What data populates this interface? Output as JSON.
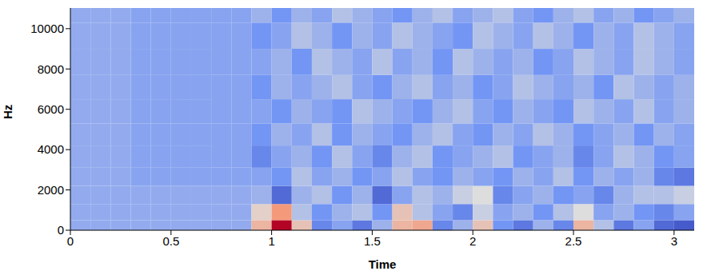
{
  "chart_data": {
    "type": "heatmap",
    "x_label": "Time",
    "y_label": "Hz",
    "xlim": [
      0,
      3.1
    ],
    "ylim": [
      0,
      11025
    ],
    "xticks": [
      0,
      0.5,
      1,
      1.5,
      2,
      2.5,
      3
    ],
    "yticks": [
      0,
      2000,
      4000,
      6000,
      8000,
      10000
    ],
    "x_edges": [
      0,
      0.1,
      0.2,
      0.3,
      0.4,
      0.5,
      0.6,
      0.7,
      0.8,
      0.9,
      1.0,
      1.1,
      1.2,
      1.3,
      1.4,
      1.5,
      1.6,
      1.7,
      1.8,
      1.9,
      2.0,
      2.1,
      2.2,
      2.3,
      2.4,
      2.5,
      2.6,
      2.7,
      2.8,
      2.9,
      3.0,
      3.1
    ],
    "y_edges": [
      0,
      500,
      1300,
      2200,
      3100,
      4200,
      5300,
      6500,
      7700,
      9000,
      10300,
      11025
    ],
    "cells": [
      [
        -0.35,
        -0.35,
        -0.35,
        -0.35,
        -0.35,
        -0.35,
        -0.35,
        -0.35,
        -0.35,
        0.3,
        1.0,
        0.2,
        -0.6,
        -0.4,
        -0.7,
        -0.3,
        0.3,
        0.4,
        -0.6,
        -0.3,
        0.2,
        -0.5,
        -0.7,
        -0.3,
        -0.6,
        0.3,
        -0.2,
        -0.7,
        -0.4,
        -0.8,
        -0.9
      ],
      [
        -0.35,
        -0.35,
        -0.35,
        -0.35,
        -0.35,
        -0.35,
        -0.35,
        -0.35,
        -0.35,
        0.1,
        0.5,
        -0.2,
        -0.5,
        -0.3,
        -0.2,
        -0.5,
        0.2,
        -0.2,
        -0.4,
        -0.6,
        -0.1,
        -0.4,
        -0.3,
        -0.5,
        -0.2,
        0.0,
        -0.4,
        -0.3,
        -0.5,
        -0.6,
        -0.4
      ],
      [
        -0.35,
        -0.35,
        -0.35,
        -0.35,
        -0.35,
        -0.35,
        -0.35,
        -0.35,
        -0.35,
        -0.3,
        -0.8,
        -0.3,
        -0.2,
        -0.5,
        -0.3,
        -0.8,
        -0.4,
        -0.2,
        -0.3,
        -0.1,
        0.0,
        -0.6,
        -0.4,
        -0.3,
        -0.5,
        -0.4,
        -0.6,
        -0.3,
        -0.2,
        -0.2,
        -0.1
      ],
      [
        -0.35,
        -0.35,
        -0.35,
        -0.4,
        -0.4,
        -0.4,
        -0.4,
        -0.4,
        -0.4,
        -0.4,
        -0.5,
        -0.2,
        -0.4,
        -0.3,
        -0.5,
        -0.4,
        -0.2,
        -0.4,
        -0.5,
        -0.3,
        -0.4,
        -0.5,
        -0.3,
        -0.4,
        -0.2,
        -0.5,
        -0.3,
        -0.4,
        -0.3,
        -0.6,
        -0.7
      ],
      [
        -0.35,
        -0.35,
        -0.35,
        -0.4,
        -0.4,
        -0.4,
        -0.4,
        -0.4,
        -0.4,
        -0.6,
        -0.4,
        -0.3,
        -0.5,
        -0.2,
        -0.4,
        -0.6,
        -0.3,
        -0.2,
        -0.5,
        -0.4,
        -0.3,
        -0.2,
        -0.5,
        -0.4,
        -0.3,
        -0.6,
        -0.4,
        -0.2,
        -0.3,
        -0.5,
        -0.4
      ],
      [
        -0.35,
        -0.35,
        -0.35,
        -0.4,
        -0.4,
        -0.4,
        -0.4,
        -0.4,
        -0.4,
        -0.5,
        -0.3,
        -0.4,
        -0.2,
        -0.5,
        -0.3,
        -0.4,
        -0.5,
        -0.3,
        -0.2,
        -0.4,
        -0.5,
        -0.3,
        -0.4,
        -0.2,
        -0.3,
        -0.5,
        -0.4,
        -0.3,
        -0.5,
        -0.3,
        -0.4
      ],
      [
        -0.35,
        -0.35,
        -0.35,
        -0.4,
        -0.4,
        -0.4,
        -0.4,
        -0.4,
        -0.4,
        -0.4,
        -0.5,
        -0.3,
        -0.4,
        -0.5,
        -0.2,
        -0.3,
        -0.4,
        -0.5,
        -0.3,
        -0.2,
        -0.4,
        -0.5,
        -0.3,
        -0.4,
        -0.5,
        -0.2,
        -0.3,
        -0.4,
        -0.2,
        -0.4,
        -0.3
      ],
      [
        -0.35,
        -0.35,
        -0.35,
        -0.4,
        -0.4,
        -0.4,
        -0.4,
        -0.4,
        -0.4,
        -0.5,
        -0.3,
        -0.4,
        -0.3,
        -0.2,
        -0.4,
        -0.5,
        -0.3,
        -0.2,
        -0.4,
        -0.3,
        -0.5,
        -0.4,
        -0.2,
        -0.3,
        -0.4,
        -0.3,
        -0.5,
        -0.2,
        -0.3,
        -0.4,
        -0.3
      ],
      [
        -0.35,
        -0.35,
        -0.35,
        -0.4,
        -0.4,
        -0.4,
        -0.4,
        -0.4,
        -0.4,
        -0.4,
        -0.3,
        -0.5,
        -0.2,
        -0.3,
        -0.4,
        -0.2,
        -0.4,
        -0.3,
        -0.5,
        -0.2,
        -0.3,
        -0.4,
        -0.3,
        -0.5,
        -0.4,
        -0.2,
        -0.3,
        -0.4,
        -0.2,
        -0.3,
        -0.4
      ],
      [
        -0.35,
        -0.35,
        -0.35,
        -0.4,
        -0.4,
        -0.4,
        -0.4,
        -0.4,
        -0.4,
        -0.5,
        -0.4,
        -0.2,
        -0.3,
        -0.5,
        -0.3,
        -0.4,
        -0.2,
        -0.3,
        -0.4,
        -0.5,
        -0.2,
        -0.3,
        -0.4,
        -0.2,
        -0.3,
        -0.5,
        -0.3,
        -0.4,
        -0.2,
        -0.3,
        -0.4
      ],
      [
        -0.35,
        -0.35,
        -0.35,
        -0.4,
        -0.4,
        -0.4,
        -0.4,
        -0.4,
        -0.4,
        -0.3,
        -0.5,
        -0.3,
        -0.4,
        -0.2,
        -0.3,
        -0.4,
        -0.5,
        -0.3,
        -0.2,
        -0.4,
        -0.3,
        -0.2,
        -0.4,
        -0.5,
        -0.3,
        -0.2,
        -0.4,
        -0.3,
        -0.5,
        -0.4,
        -0.3
      ]
    ]
  }
}
